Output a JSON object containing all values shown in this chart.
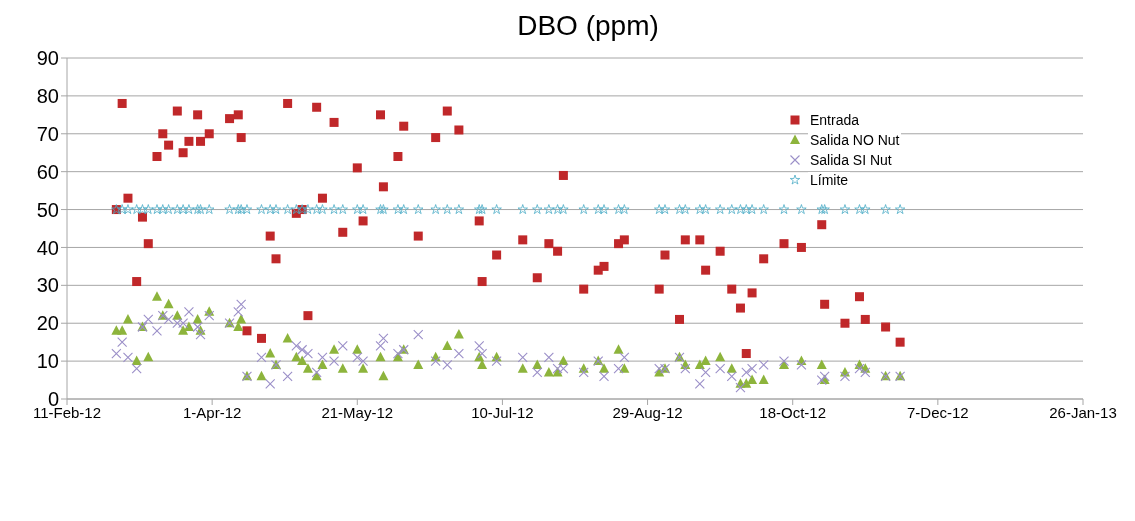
{
  "chart_data": {
    "type": "scatter",
    "title": "DBO (ppm)",
    "x": [
      "2012-02-28",
      "2012-03-01",
      "2012-03-03",
      "2012-03-06",
      "2012-03-08",
      "2012-03-10",
      "2012-03-13",
      "2012-03-15",
      "2012-03-17",
      "2012-03-20",
      "2012-03-22",
      "2012-03-24",
      "2012-03-27",
      "2012-03-28",
      "2012-03-31",
      "2012-04-07",
      "2012-04-10",
      "2012-04-11",
      "2012-04-13",
      "2012-04-18",
      "2012-04-21",
      "2012-04-23",
      "2012-04-27",
      "2012-04-30",
      "2012-05-02",
      "2012-05-04",
      "2012-05-07",
      "2012-05-09",
      "2012-05-13",
      "2012-05-16",
      "2012-05-21",
      "2012-05-23",
      "2012-05-29",
      "2012-05-30",
      "2012-06-04",
      "2012-06-06",
      "2012-06-11",
      "2012-06-17",
      "2012-06-21",
      "2012-06-25",
      "2012-07-02",
      "2012-07-03",
      "2012-07-08",
      "2012-07-17",
      "2012-07-22",
      "2012-07-26",
      "2012-07-29",
      "2012-07-31",
      "2012-08-07",
      "2012-08-12",
      "2012-08-14",
      "2012-08-19",
      "2012-08-21",
      "2012-09-02",
      "2012-09-04",
      "2012-09-09",
      "2012-09-11",
      "2012-09-16",
      "2012-09-18",
      "2012-09-23",
      "2012-09-27",
      "2012-09-30",
      "2012-10-02",
      "2012-10-04",
      "2012-10-08",
      "2012-10-15",
      "2012-10-21",
      "2012-10-28",
      "2012-10-29",
      "2012-11-05",
      "2012-11-10",
      "2012-11-12",
      "2012-11-19",
      "2012-11-24"
    ],
    "series": [
      {
        "name": "Entrada",
        "color": "#c0282a",
        "marker": "square",
        "values": [
          50,
          78,
          53,
          31,
          48,
          41,
          64,
          70,
          67,
          76,
          65,
          68,
          75,
          68,
          70,
          74,
          75,
          69,
          18,
          16,
          43,
          37,
          78,
          49,
          50,
          22,
          77,
          53,
          73,
          44,
          61,
          47,
          75,
          56,
          64,
          72,
          43,
          69,
          76,
          71,
          47,
          31,
          38,
          42,
          32,
          41,
          39,
          59,
          29,
          34,
          35,
          41,
          42,
          29,
          38,
          21,
          42,
          42,
          34,
          39,
          29,
          24,
          12,
          28,
          37,
          41,
          40,
          46,
          25,
          20,
          27,
          21,
          19,
          15
        ]
      },
      {
        "name": "Salida NO Nut",
        "color": "#8db43c",
        "marker": "triangle",
        "values": [
          18,
          18,
          21,
          10,
          19,
          11,
          27,
          22,
          25,
          22,
          18,
          19,
          21,
          18,
          23,
          20,
          19,
          21,
          6,
          6,
          12,
          9,
          16,
          11,
          10,
          8,
          6,
          9,
          13,
          8,
          13,
          8,
          11,
          6,
          11,
          13,
          9,
          11,
          14,
          17,
          11,
          9,
          11,
          8,
          9,
          7,
          7,
          10,
          8,
          10,
          8,
          13,
          8,
          7,
          8,
          11,
          9,
          9,
          10,
          11,
          8,
          4,
          4,
          5,
          5,
          9,
          10,
          9,
          5,
          7,
          9,
          8,
          6,
          6
        ]
      },
      {
        "name": "Salida SI Nut",
        "color": "#9b8fc8",
        "marker": "cross",
        "values": [
          12,
          15,
          11,
          8,
          19,
          21,
          18,
          22,
          21,
          20,
          20,
          23,
          19,
          17,
          22,
          20,
          23,
          25,
          6,
          11,
          4,
          9,
          6,
          14,
          13,
          12,
          7,
          11,
          10,
          14,
          11,
          10,
          14,
          16,
          12,
          13,
          17,
          10,
          9,
          12,
          14,
          12,
          10,
          11,
          7,
          11,
          8,
          8,
          7,
          10,
          6,
          8,
          11,
          8,
          8,
          11,
          8,
          4,
          7,
          8,
          6,
          3,
          7,
          8,
          9,
          10,
          9,
          5,
          6,
          6,
          8,
          7,
          6,
          6
        ]
      },
      {
        "name": "Límite",
        "color": "#4bacc6",
        "marker": "star",
        "values": [
          50,
          50,
          50,
          50,
          50,
          50,
          50,
          50,
          50,
          50,
          50,
          50,
          50,
          50,
          50,
          50,
          50,
          50,
          50,
          50,
          50,
          50,
          50,
          50,
          50,
          50,
          50,
          50,
          50,
          50,
          50,
          50,
          50,
          50,
          50,
          50,
          50,
          50,
          50,
          50,
          50,
          50,
          50,
          50,
          50,
          50,
          50,
          50,
          50,
          50,
          50,
          50,
          50,
          50,
          50,
          50,
          50,
          50,
          50,
          50,
          50,
          50,
          50,
          50,
          50,
          50,
          50,
          50,
          50,
          50,
          50,
          50,
          50,
          50
        ]
      }
    ],
    "xlim": [
      "2012-02-11",
      "2013-01-26"
    ],
    "xticks": [
      {
        "value": "2012-02-11",
        "label": "11-Feb-12"
      },
      {
        "value": "2012-04-01",
        "label": "1-Apr-12"
      },
      {
        "value": "2012-05-21",
        "label": "21-May-12"
      },
      {
        "value": "2012-07-10",
        "label": "10-Jul-12"
      },
      {
        "value": "2012-08-29",
        "label": "29-Aug-12"
      },
      {
        "value": "2012-10-18",
        "label": "18-Oct-12"
      },
      {
        "value": "2012-12-07",
        "label": "7-Dec-12"
      },
      {
        "value": "2013-01-26",
        "label": "26-Jan-13"
      }
    ],
    "ylim": [
      0,
      90
    ],
    "yticks": [
      0,
      10,
      20,
      30,
      40,
      50,
      60,
      70,
      80,
      90
    ],
    "grid": "y",
    "legend": "top right"
  }
}
